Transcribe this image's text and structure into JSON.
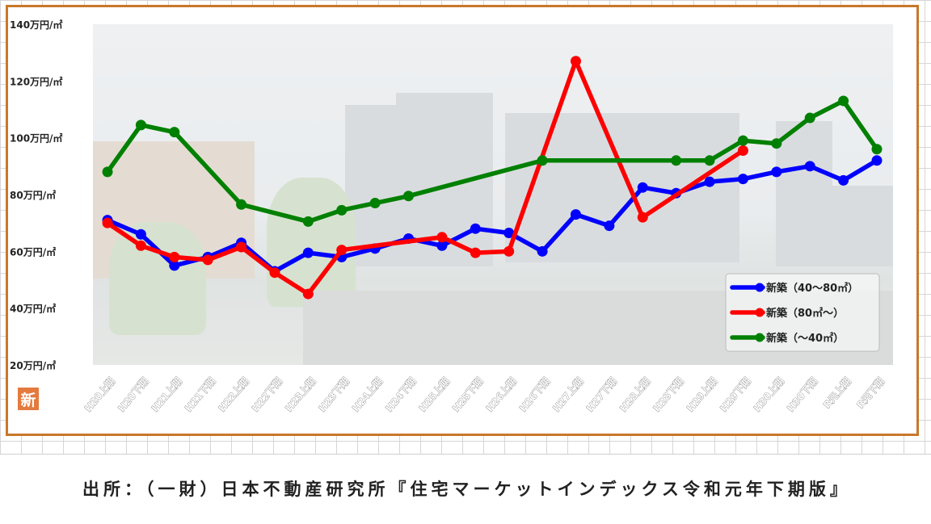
{
  "footer": {
    "source_text": "出所：（一財）日本不動産研究所『住宅マーケットインデックス令和元年下期版』"
  },
  "badge": {
    "label": "新"
  },
  "colors": {
    "frame": "#c8782a",
    "blue": "#0000ff",
    "red": "#ff0000",
    "green": "#008000"
  },
  "chart_data": {
    "type": "line",
    "title": "",
    "xlabel": "",
    "ylabel": "",
    "ylim": [
      20,
      140
    ],
    "y_ticks": [
      20,
      40,
      60,
      80,
      100,
      120,
      140
    ],
    "y_tick_labels": [
      "20万円/㎡",
      "40万円/㎡",
      "60万円/㎡",
      "80万円/㎡",
      "100万円/㎡",
      "120万円/㎡",
      "140万円/㎡"
    ],
    "categories": [
      "H20上期",
      "H20下期",
      "H21上期",
      "H21下期",
      "H22上期",
      "H22下期",
      "H23上期",
      "H23下期",
      "H24上期",
      "H24下期",
      "H25上期",
      "H25下期",
      "H26上期",
      "H26下期",
      "H27上期",
      "H27下期",
      "H28上期",
      "H28下期",
      "H29上期",
      "H29下期",
      "H30上期",
      "H30下期",
      "R元上期",
      "R元下期"
    ],
    "legend_position": "bottom-right",
    "grid": false,
    "series": [
      {
        "name": "新築（40～80㎡）",
        "color": "#0000ff",
        "values": [
          71,
          66,
          55,
          58,
          63,
          53,
          59.5,
          58,
          61,
          64.5,
          62,
          68,
          66.5,
          60,
          73,
          69,
          82.5,
          80.5,
          84.5,
          85.5,
          88,
          90,
          85,
          92
        ]
      },
      {
        "name": "新築（80㎡～）",
        "color": "#ff0000",
        "values": [
          70,
          62,
          58,
          57,
          61.5,
          52.5,
          45,
          60.5,
          null,
          null,
          65,
          59.5,
          60,
          null,
          127,
          null,
          72,
          null,
          null,
          95.5,
          null,
          null,
          null,
          null
        ]
      },
      {
        "name": "新築（～40㎡）",
        "color": "#008000",
        "values": [
          88,
          104.5,
          102,
          null,
          76.5,
          null,
          70.5,
          74.5,
          77,
          79.5,
          null,
          null,
          null,
          92,
          null,
          null,
          null,
          92,
          92,
          99,
          98,
          107,
          113,
          96
        ]
      }
    ]
  }
}
